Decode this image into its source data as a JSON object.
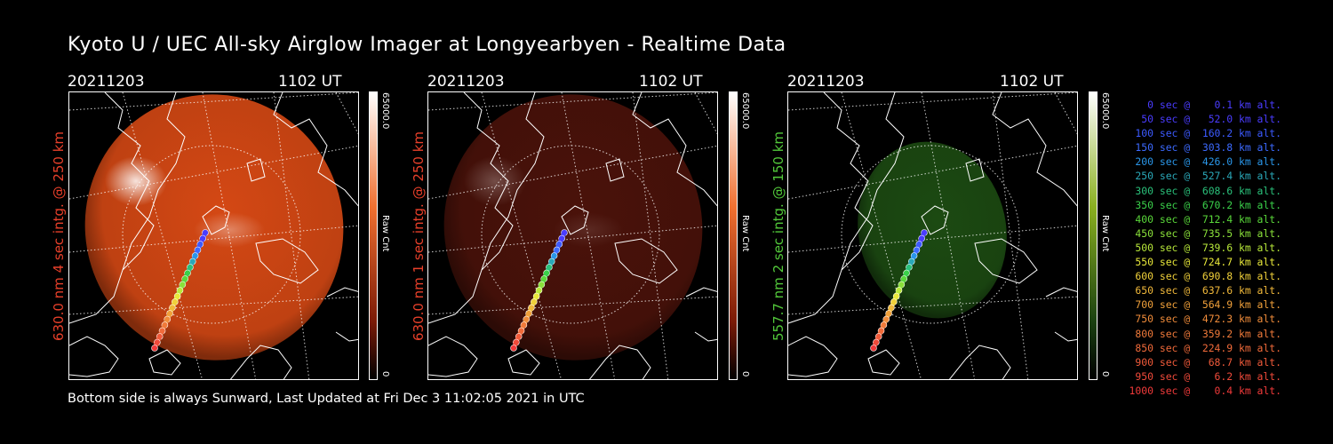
{
  "title": "Kyoto U / UEC All-sky Airglow Imager at Longyearbyen - Realtime Data",
  "panels": [
    {
      "date": "20211203",
      "time": "1102 UT",
      "label": "630.0 nm 4 sec intg. @ 250 km",
      "label_color": "#e8402a",
      "colorbar_max": "65000.0",
      "colorbar_min": "0",
      "colorbar_unit": "Raw Cnt",
      "image_color": "#d44814",
      "bar_top": "#ffffff",
      "bar_mid": "#f07030",
      "bar_low": "#7a1a06"
    },
    {
      "date": "20211203",
      "time": "1102 UT",
      "label": "630.0 nm 1 sec intg. @ 250 km",
      "label_color": "#e8402a",
      "colorbar_max": "65000.0",
      "colorbar_min": "0",
      "colorbar_unit": "Raw Cnt",
      "image_color": "#4a120a",
      "bar_top": "#ffffff",
      "bar_mid": "#f07030",
      "bar_low": "#7a1a06"
    },
    {
      "date": "20211203",
      "time": "1102 UT",
      "label": "557.7 nm 2 sec intg. @ 150 km",
      "label_color": "#52c83a",
      "colorbar_max": "65000.0",
      "colorbar_min": "0",
      "colorbar_unit": "Raw Cnt",
      "image_color": "#1c4a12",
      "bar_top": "#ffffff",
      "bar_mid": "#8ab020",
      "bar_low": "#1a4010"
    }
  ],
  "legend": [
    {
      "text": "   0 sec @    0.1 km alt.",
      "color": "#4a3cff"
    },
    {
      "text": "  50 sec @   52.0 km alt.",
      "color": "#4a3cff"
    },
    {
      "text": " 100 sec @  160.2 km alt.",
      "color": "#3c5aff"
    },
    {
      "text": " 150 sec @  303.8 km alt.",
      "color": "#3c6aff"
    },
    {
      "text": " 200 sec @  426.0 km alt.",
      "color": "#2a96e8"
    },
    {
      "text": " 250 sec @  527.4 km alt.",
      "color": "#2aa8b8"
    },
    {
      "text": " 300 sec @  608.6 km alt.",
      "color": "#2ac07a"
    },
    {
      "text": " 350 sec @  670.2 km alt.",
      "color": "#3ad04a"
    },
    {
      "text": " 400 sec @  712.4 km alt.",
      "color": "#5ad83a"
    },
    {
      "text": " 450 sec @  735.5 km alt.",
      "color": "#8ae03a"
    },
    {
      "text": " 500 sec @  739.6 km alt.",
      "color": "#b8e83a"
    },
    {
      "text": " 550 sec @  724.7 km alt.",
      "color": "#e8e83a"
    },
    {
      "text": " 600 sec @  690.8 km alt.",
      "color": "#f0d03a"
    },
    {
      "text": " 650 sec @  637.6 km alt.",
      "color": "#f0b83a"
    },
    {
      "text": " 700 sec @  564.9 km alt.",
      "color": "#f0a03a"
    },
    {
      "text": " 750 sec @  472.3 km alt.",
      "color": "#f08c3a"
    },
    {
      "text": " 800 sec @  359.2 km alt.",
      "color": "#f07a3a"
    },
    {
      "text": " 850 sec @  224.9 km alt.",
      "color": "#f06a3a"
    },
    {
      "text": " 900 sec @   68.7 km alt.",
      "color": "#f05a3a"
    },
    {
      "text": " 950 sec @    6.2 km alt.",
      "color": "#f04a3a"
    },
    {
      "text": "1000 sec @    0.4 km alt.",
      "color": "#f03a3a"
    }
  ],
  "footer": "Bottom side is always Sunward, Last Updated at Fri Dec  3 11:02:05 2021 in UTC"
}
